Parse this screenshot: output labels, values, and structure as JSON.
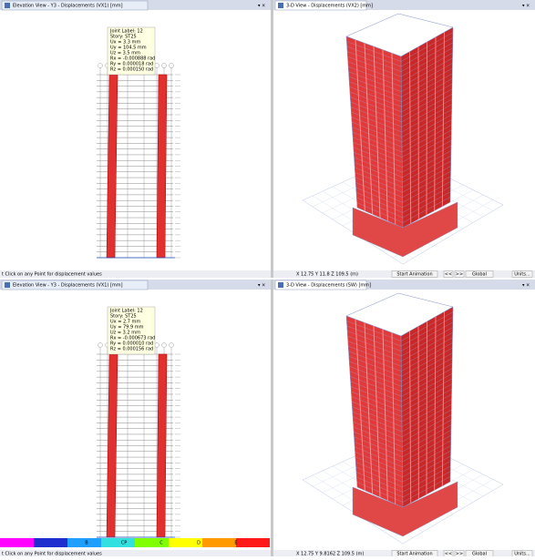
{
  "rows": [
    {
      "elevation": {
        "tab": "Elevation View - Y3 - Displacements (VX1) [mm]",
        "tooltip": [
          "Joint Label: 12",
          "Story: ST25",
          "Ux = 3.3 mm",
          "Uy = 104.5 mm",
          "Uz = 3.5 mm",
          "Rx = -0.000888 rad",
          "Ry = 0.000018 rad",
          "Rz = 0.000150 rad"
        ]
      },
      "view3d": {
        "tab": "3-D View - Displacements (VX2) [mm]"
      },
      "status": {
        "hint": "t Click on any Point for displacement values",
        "coords": "X 12.75  Y 11.8  Z 109.5 (m)",
        "animate": "Start Animation",
        "prev": "<<",
        "next": ">>",
        "system": "Global",
        "units": "Units..."
      }
    },
    {
      "elevation": {
        "tab": "Elevation View - Y3 - Displacements (VX1) [mm]",
        "tooltip": [
          "Joint Label: 12",
          "Story: ST25",
          "Ux = 2.7 mm",
          "Uy = 79.9 mm",
          "Uz = 3.2 mm",
          "Rx = -0.000673 rad",
          "Ry = 0.000010 rad",
          "Rz = 0.000156 rad"
        ],
        "legend": [
          "B",
          "CP",
          "C",
          "D",
          "E"
        ]
      },
      "view3d": {
        "tab": "3-D View - Displacements (SW) [mm]"
      },
      "status": {
        "hint": "t Click on any Point for displacement values",
        "coords": "X 12.75  Y 9.8162  Z 109.5 (m)",
        "animate": "Start Animation",
        "prev": "<<",
        "next": ">>",
        "system": "Global",
        "units": "Units..."
      }
    }
  ]
}
